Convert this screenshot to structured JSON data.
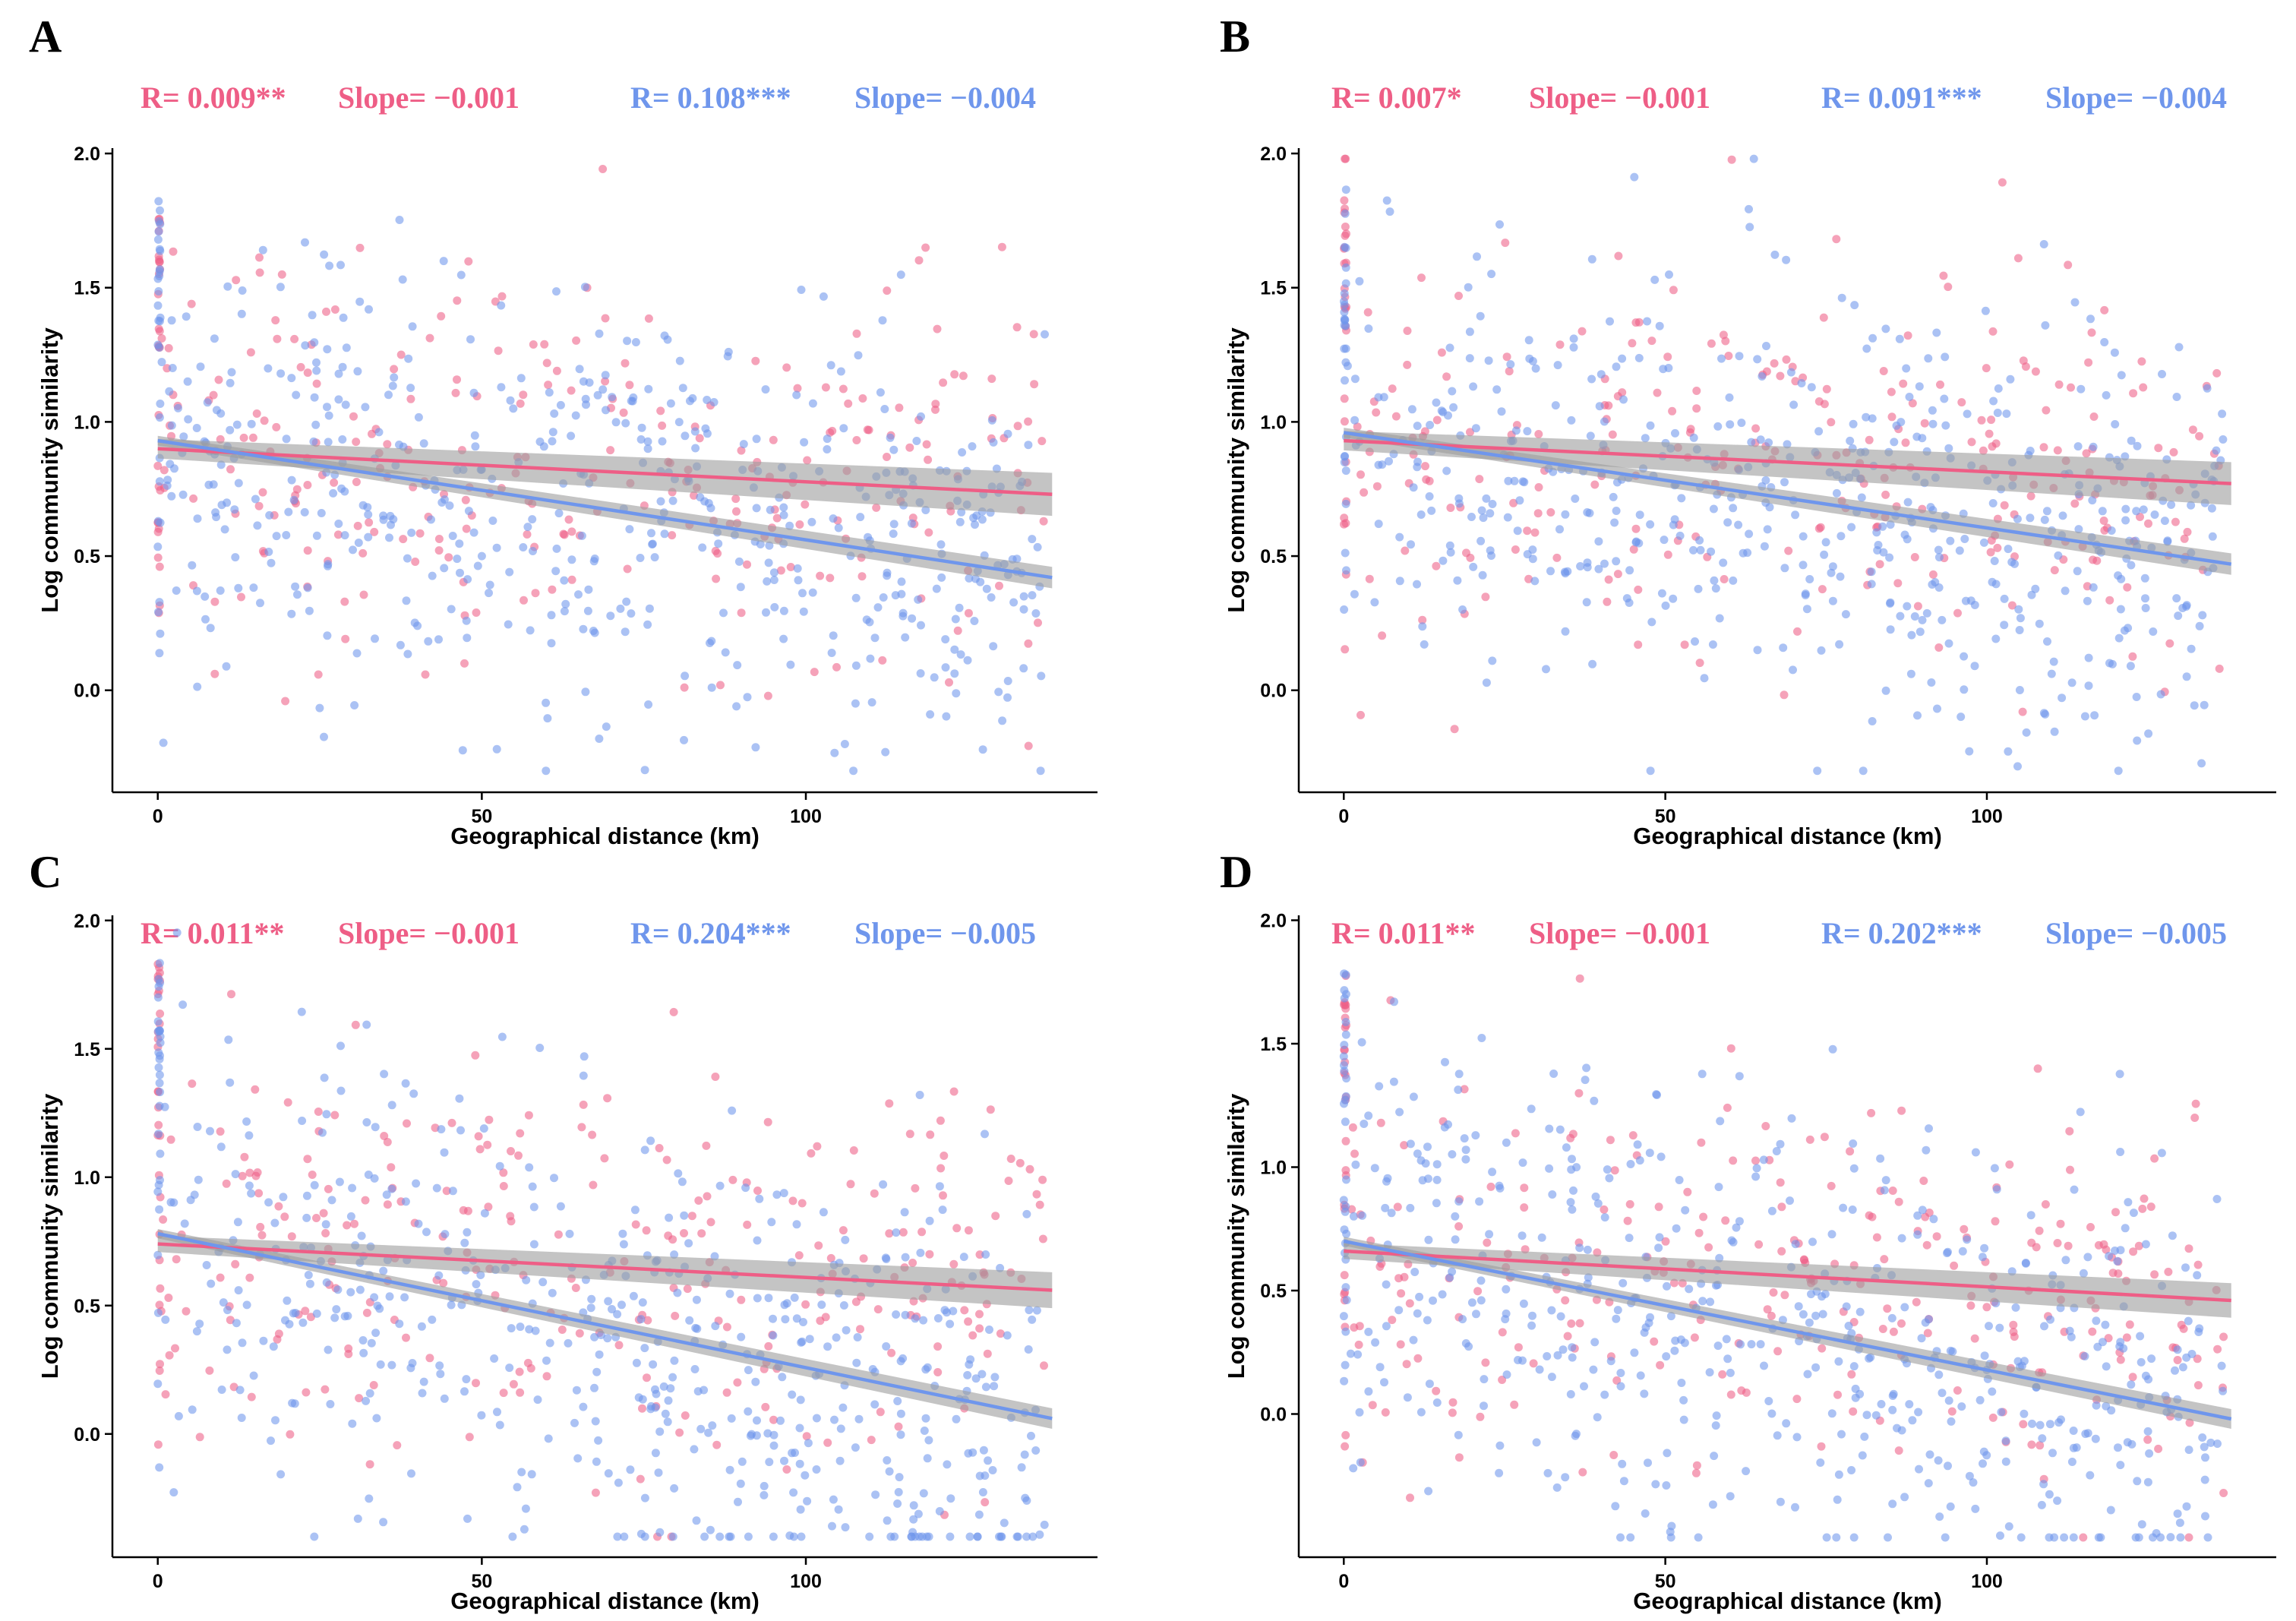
{
  "colors": {
    "pink": "#EE5E86",
    "blue": "#6F96EC",
    "band": "#9C9C9C"
  },
  "chart_data": [
    {
      "type": "scatter",
      "panel": "A",
      "xlabel": "Geographical distance (km)",
      "ylabel": "Log community similarity",
      "xlim": [
        -7,
        145
      ],
      "ylim": [
        -0.38,
        2.02
      ],
      "xticks": [
        0,
        50,
        100
      ],
      "yticks": [
        0.0,
        0.5,
        1.0,
        1.5,
        2.0
      ],
      "ytick_labels": [
        "0.0",
        "0.5",
        "1.0",
        "1.5",
        "2.0"
      ],
      "stats": [
        {
          "text": "R= 0.009**",
          "series": "pink"
        },
        {
          "text": "Slope= −0.001",
          "series": "pink"
        },
        {
          "text": "R= 0.108***",
          "series": "blue"
        },
        {
          "text": "Slope= −0.004",
          "series": "blue"
        }
      ],
      "series": [
        {
          "name": "pink",
          "fit": {
            "x": [
              0,
              138
            ],
            "y": [
              0.9,
              0.73
            ]
          },
          "band": 0.08,
          "cloud": {
            "y_center": 0.82,
            "y_spread": 0.36,
            "count": 300,
            "zero_spread": 0.4,
            "seed": 11
          }
        },
        {
          "name": "blue",
          "fit": {
            "x": [
              0,
              138
            ],
            "y": [
              0.93,
              0.42
            ]
          },
          "band": 0.04,
          "cloud": {
            "y_center": 0.7,
            "y_spread": 0.38,
            "count": 560,
            "zero_spread": 0.4,
            "seed": 23
          }
        }
      ]
    },
    {
      "type": "scatter",
      "panel": "B",
      "xlabel": "Geographical distance (km)",
      "ylabel": "Log community similarity",
      "xlim": [
        -7,
        145
      ],
      "ylim": [
        -0.38,
        2.02
      ],
      "xticks": [
        0,
        50,
        100
      ],
      "yticks": [
        0.0,
        0.5,
        1.0,
        1.5,
        2.0
      ],
      "ytick_labels": [
        "0.0",
        "0.5",
        "1.0",
        "1.5",
        "2.0"
      ],
      "stats": [
        {
          "text": "R= 0.007*",
          "series": "pink"
        },
        {
          "text": "Slope= −0.001",
          "series": "pink"
        },
        {
          "text": "R= 0.091***",
          "series": "blue"
        },
        {
          "text": "Slope= −0.004",
          "series": "blue"
        }
      ],
      "series": [
        {
          "name": "pink",
          "fit": {
            "x": [
              0,
              138
            ],
            "y": [
              0.93,
              0.77
            ]
          },
          "band": 0.08,
          "cloud": {
            "y_center": 0.85,
            "y_spread": 0.36,
            "count": 300,
            "zero_spread": 0.4,
            "seed": 37
          }
        },
        {
          "name": "blue",
          "fit": {
            "x": [
              0,
              138
            ],
            "y": [
              0.96,
              0.47
            ]
          },
          "band": 0.04,
          "cloud": {
            "y_center": 0.72,
            "y_spread": 0.38,
            "count": 560,
            "zero_spread": 0.4,
            "seed": 41
          }
        }
      ]
    },
    {
      "type": "scatter",
      "panel": "C",
      "xlabel": "Geographical distance (km)",
      "ylabel": "Log community similarity",
      "xlim": [
        -7,
        145
      ],
      "ylim": [
        -0.48,
        2.02
      ],
      "xticks": [
        0,
        50,
        100
      ],
      "yticks": [
        0.0,
        0.5,
        1.0,
        1.5,
        2.0
      ],
      "ytick_labels": [
        "0.0",
        "0.5",
        "1.0",
        "1.5",
        "2.0"
      ],
      "stats": [
        {
          "text": "R= 0.011**",
          "series": "pink"
        },
        {
          "text": "Slope= −0.001",
          "series": "pink"
        },
        {
          "text": "R= 0.204***",
          "series": "blue"
        },
        {
          "text": "Slope= −0.005",
          "series": "blue"
        }
      ],
      "series": [
        {
          "name": "pink",
          "fit": {
            "x": [
              0,
              138
            ],
            "y": [
              0.74,
              0.56
            ]
          },
          "band": 0.07,
          "cloud": {
            "y_center": 0.65,
            "y_spread": 0.38,
            "count": 300,
            "zero_spread": 0.45,
            "seed": 53
          }
        },
        {
          "name": "blue",
          "fit": {
            "x": [
              0,
              138
            ],
            "y": [
              0.78,
              0.06
            ]
          },
          "band": 0.04,
          "cloud": {
            "y_center": 0.42,
            "y_spread": 0.42,
            "count": 560,
            "zero_spread": 0.45,
            "seed": 67
          }
        }
      ]
    },
    {
      "type": "scatter",
      "panel": "D",
      "xlabel": "Geographical distance (km)",
      "ylabel": "Log community similarity",
      "xlim": [
        -7,
        145
      ],
      "ylim": [
        -0.58,
        2.02
      ],
      "xticks": [
        0,
        50,
        100
      ],
      "yticks": [
        0.0,
        0.5,
        1.0,
        1.5,
        2.0
      ],
      "ytick_labels": [
        "0.0",
        "0.5",
        "1.0",
        "1.5",
        "2.0"
      ],
      "stats": [
        {
          "text": "R= 0.011**",
          "series": "pink"
        },
        {
          "text": "Slope= −0.001",
          "series": "pink"
        },
        {
          "text": "R= 0.202***",
          "series": "blue"
        },
        {
          "text": "Slope= −0.005",
          "series": "blue"
        }
      ],
      "series": [
        {
          "name": "pink",
          "fit": {
            "x": [
              0,
              138
            ],
            "y": [
              0.66,
              0.46
            ]
          },
          "band": 0.07,
          "cloud": {
            "y_center": 0.56,
            "y_spread": 0.4,
            "count": 300,
            "zero_spread": 0.45,
            "seed": 71
          }
        },
        {
          "name": "blue",
          "fit": {
            "x": [
              0,
              138
            ],
            "y": [
              0.7,
              -0.02
            ]
          },
          "band": 0.04,
          "cloud": {
            "y_center": 0.34,
            "y_spread": 0.44,
            "count": 560,
            "zero_spread": 0.45,
            "seed": 89
          }
        }
      ]
    }
  ]
}
